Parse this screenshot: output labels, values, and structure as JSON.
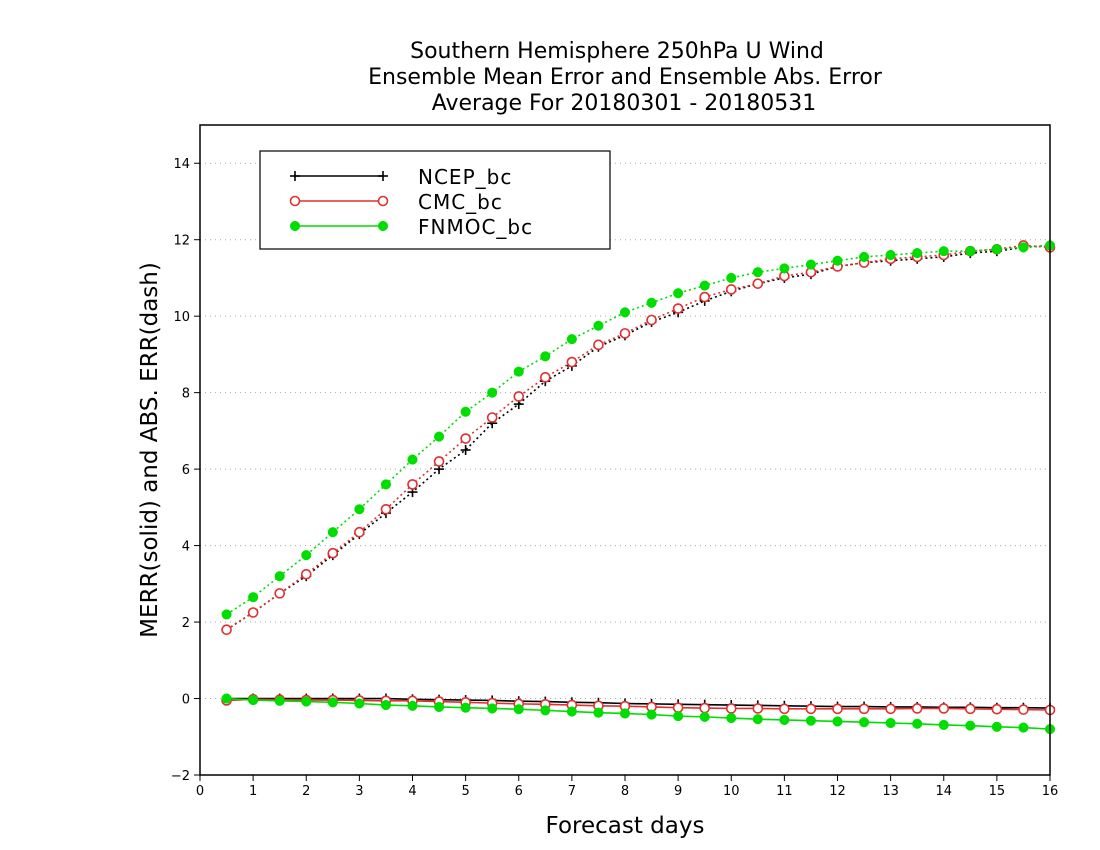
{
  "chart_data": {
    "type": "line",
    "title_lines": [
      "Southern Hemisphere 250hPa U Wind",
      "Ensemble Mean Error and Ensemble Abs. Error",
      "Average For 20180301 - 20180531"
    ],
    "xlabel": "Forecast days",
    "ylabel": "MERR(solid) and ABS. ERR(dash)",
    "xlim": [
      0,
      16
    ],
    "ylim": [
      -2,
      15
    ],
    "xticks": [
      "0",
      "1",
      "2",
      "3",
      "4",
      "5",
      "6",
      "7",
      "8",
      "9",
      "10",
      "11",
      "12",
      "13",
      "14",
      "15",
      "16"
    ],
    "yticks": [
      "−2",
      "0",
      "2",
      "4",
      "6",
      "8",
      "10",
      "12",
      "14"
    ],
    "grid": "horizontal dotted",
    "legend_position": "top-left",
    "x": [
      0.5,
      1,
      1.5,
      2,
      2.5,
      3,
      3.5,
      4,
      4.5,
      5,
      5.5,
      6,
      6.5,
      7,
      7.5,
      8,
      8.5,
      9,
      9.5,
      10,
      10.5,
      11,
      11.5,
      12,
      12.5,
      13,
      13.5,
      14,
      14.5,
      15,
      15.5,
      16
    ],
    "series": [
      {
        "name": "NCEP_bc",
        "color": "#000000",
        "marker": "plus",
        "merr": [
          0,
          0,
          0,
          0,
          0,
          0,
          0,
          -0.02,
          -0.03,
          -0.04,
          -0.05,
          -0.07,
          -0.08,
          -0.1,
          -0.11,
          -0.13,
          -0.14,
          -0.15,
          -0.16,
          -0.17,
          -0.18,
          -0.19,
          -0.2,
          -0.21,
          -0.21,
          -0.22,
          -0.22,
          -0.23,
          -0.23,
          -0.24,
          -0.24,
          -0.25
        ],
        "abs_err": [
          1.8,
          2.25,
          2.75,
          3.2,
          3.75,
          4.3,
          4.85,
          5.4,
          6.0,
          6.5,
          7.2,
          7.7,
          8.3,
          8.7,
          9.2,
          9.5,
          9.85,
          10.1,
          10.4,
          10.65,
          10.85,
          11.0,
          11.1,
          11.3,
          11.4,
          11.45,
          11.5,
          11.55,
          11.65,
          11.7,
          11.8,
          11.85
        ]
      },
      {
        "name": "CMC_bc",
        "color": "#e03030",
        "marker": "open-circle",
        "merr": [
          -0.05,
          -0.02,
          -0.03,
          -0.04,
          -0.04,
          -0.05,
          -0.06,
          -0.06,
          -0.08,
          -0.1,
          -0.12,
          -0.14,
          -0.15,
          -0.17,
          -0.19,
          -0.2,
          -0.22,
          -0.24,
          -0.25,
          -0.26,
          -0.26,
          -0.27,
          -0.27,
          -0.27,
          -0.27,
          -0.27,
          -0.26,
          -0.26,
          -0.27,
          -0.28,
          -0.29,
          -0.3
        ],
        "abs_err": [
          1.8,
          2.25,
          2.75,
          3.25,
          3.8,
          4.35,
          4.95,
          5.6,
          6.2,
          6.8,
          7.35,
          7.9,
          8.4,
          8.8,
          9.25,
          9.55,
          9.9,
          10.2,
          10.5,
          10.7,
          10.85,
          11.05,
          11.15,
          11.3,
          11.4,
          11.5,
          11.55,
          11.6,
          11.7,
          11.75,
          11.85,
          11.8
        ]
      },
      {
        "name": "FNMOC_bc",
        "color": "#00dd00",
        "marker": "filled-circle",
        "merr": [
          0,
          -0.04,
          -0.06,
          -0.08,
          -0.1,
          -0.13,
          -0.17,
          -0.19,
          -0.22,
          -0.24,
          -0.26,
          -0.28,
          -0.31,
          -0.34,
          -0.37,
          -0.39,
          -0.42,
          -0.46,
          -0.48,
          -0.51,
          -0.54,
          -0.56,
          -0.58,
          -0.6,
          -0.62,
          -0.64,
          -0.66,
          -0.69,
          -0.71,
          -0.74,
          -0.76,
          -0.8
        ],
        "abs_err": [
          2.2,
          2.65,
          3.2,
          3.75,
          4.35,
          4.95,
          5.6,
          6.25,
          6.85,
          7.5,
          8.0,
          8.55,
          8.95,
          9.4,
          9.75,
          10.1,
          10.35,
          10.6,
          10.8,
          11.0,
          11.15,
          11.25,
          11.35,
          11.45,
          11.55,
          11.6,
          11.65,
          11.7,
          11.7,
          11.75,
          11.8,
          11.85
        ]
      }
    ]
  }
}
